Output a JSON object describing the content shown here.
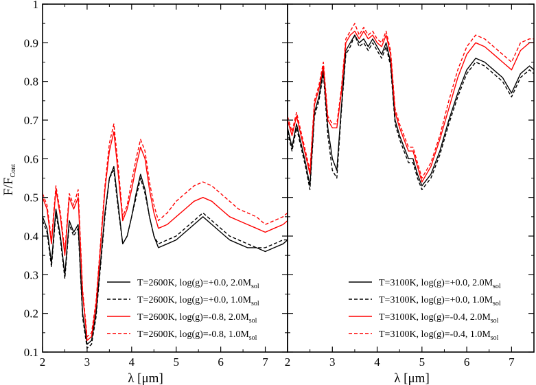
{
  "chart_data": [
    {
      "type": "line",
      "xlabel": "λ [μm]",
      "ylabel": "F/F",
      "ylabel_sub": "Cont",
      "xlim": [
        2,
        7.5
      ],
      "ylim": [
        0.1,
        1.0
      ],
      "x_ticks": [
        "2",
        "3",
        "4",
        "5",
        "6",
        "7"
      ],
      "y_ticks": [
        "0.1",
        "0.2",
        "0.3",
        "0.4",
        "0.5",
        "0.6",
        "0.7",
        "0.8",
        "0.9",
        "1"
      ],
      "legend_position": "bottom-right",
      "series": [
        {
          "name": "T=2600K, log(g)=+0.0, 2.0M",
          "name_sub": "sol",
          "color": "#000000",
          "dash": "solid",
          "x": [
            2.0,
            2.1,
            2.2,
            2.3,
            2.4,
            2.5,
            2.6,
            2.7,
            2.8,
            2.9,
            3.0,
            3.1,
            3.2,
            3.3,
            3.4,
            3.5,
            3.6,
            3.7,
            3.8,
            3.9,
            4.0,
            4.1,
            4.2,
            4.3,
            4.4,
            4.5,
            4.6,
            4.8,
            5.0,
            5.2,
            5.4,
            5.6,
            5.8,
            6.0,
            6.2,
            6.4,
            6.6,
            6.8,
            7.0,
            7.2,
            7.4,
            7.5
          ],
          "y": [
            0.45,
            0.42,
            0.33,
            0.47,
            0.4,
            0.3,
            0.44,
            0.41,
            0.43,
            0.2,
            0.12,
            0.13,
            0.2,
            0.33,
            0.46,
            0.55,
            0.58,
            0.48,
            0.38,
            0.4,
            0.45,
            0.51,
            0.56,
            0.52,
            0.45,
            0.4,
            0.37,
            0.38,
            0.39,
            0.41,
            0.43,
            0.45,
            0.43,
            0.41,
            0.39,
            0.38,
            0.37,
            0.37,
            0.36,
            0.37,
            0.38,
            0.39
          ]
        },
        {
          "name": "T=2600K, log(g)=+0.0, 1.0M",
          "name_sub": "sol",
          "color": "#000000",
          "dash": "dashed",
          "x": [
            2.0,
            2.1,
            2.2,
            2.3,
            2.4,
            2.5,
            2.6,
            2.7,
            2.8,
            2.9,
            3.0,
            3.1,
            3.2,
            3.3,
            3.4,
            3.5,
            3.6,
            3.7,
            3.8,
            3.9,
            4.0,
            4.1,
            4.2,
            4.3,
            4.4,
            4.5,
            4.6,
            4.8,
            5.0,
            5.2,
            5.4,
            5.6,
            5.8,
            6.0,
            6.2,
            6.4,
            6.6,
            6.8,
            7.0,
            7.2,
            7.4,
            7.5
          ],
          "y": [
            0.44,
            0.41,
            0.32,
            0.46,
            0.39,
            0.29,
            0.43,
            0.4,
            0.42,
            0.19,
            0.11,
            0.12,
            0.19,
            0.32,
            0.45,
            0.55,
            0.57,
            0.47,
            0.38,
            0.4,
            0.45,
            0.5,
            0.55,
            0.51,
            0.45,
            0.4,
            0.38,
            0.39,
            0.4,
            0.42,
            0.44,
            0.46,
            0.44,
            0.42,
            0.4,
            0.39,
            0.38,
            0.37,
            0.37,
            0.38,
            0.39,
            0.39
          ]
        },
        {
          "name": "T=2600K, log(g)=-0.8, 2.0M",
          "name_sub": "sol",
          "color": "#ff0000",
          "dash": "solid",
          "x": [
            2.0,
            2.1,
            2.2,
            2.3,
            2.4,
            2.5,
            2.6,
            2.7,
            2.8,
            2.9,
            3.0,
            3.1,
            3.2,
            3.3,
            3.4,
            3.5,
            3.6,
            3.7,
            3.8,
            3.9,
            4.0,
            4.1,
            4.2,
            4.3,
            4.4,
            4.5,
            4.6,
            4.8,
            5.0,
            5.2,
            5.4,
            5.6,
            5.8,
            6.0,
            6.2,
            6.4,
            6.6,
            6.8,
            7.0,
            7.2,
            7.4,
            7.5
          ],
          "y": [
            0.5,
            0.47,
            0.38,
            0.52,
            0.45,
            0.35,
            0.5,
            0.47,
            0.5,
            0.25,
            0.13,
            0.14,
            0.22,
            0.37,
            0.52,
            0.62,
            0.67,
            0.56,
            0.44,
            0.47,
            0.52,
            0.58,
            0.63,
            0.6,
            0.52,
            0.46,
            0.42,
            0.43,
            0.45,
            0.47,
            0.49,
            0.5,
            0.49,
            0.47,
            0.45,
            0.44,
            0.43,
            0.42,
            0.41,
            0.42,
            0.43,
            0.44
          ]
        },
        {
          "name": "T=2600K, log(g)=-0.8, 1.0M",
          "name_sub": "sol",
          "color": "#ff0000",
          "dash": "dashed",
          "x": [
            2.0,
            2.1,
            2.2,
            2.3,
            2.4,
            2.5,
            2.6,
            2.7,
            2.8,
            2.9,
            3.0,
            3.1,
            3.2,
            3.3,
            3.4,
            3.5,
            3.6,
            3.7,
            3.8,
            3.9,
            4.0,
            4.1,
            4.2,
            4.3,
            4.4,
            4.5,
            4.6,
            4.8,
            5.0,
            5.2,
            5.4,
            5.6,
            5.8,
            6.0,
            6.2,
            6.4,
            6.6,
            6.8,
            7.0,
            7.2,
            7.4,
            7.5
          ],
          "y": [
            0.51,
            0.48,
            0.39,
            0.53,
            0.46,
            0.36,
            0.51,
            0.48,
            0.52,
            0.26,
            0.14,
            0.15,
            0.23,
            0.38,
            0.53,
            0.64,
            0.69,
            0.58,
            0.45,
            0.48,
            0.54,
            0.6,
            0.65,
            0.62,
            0.54,
            0.48,
            0.44,
            0.46,
            0.49,
            0.51,
            0.53,
            0.54,
            0.53,
            0.51,
            0.49,
            0.47,
            0.46,
            0.45,
            0.43,
            0.44,
            0.45,
            0.46
          ]
        }
      ]
    },
    {
      "type": "line",
      "xlabel": "λ [μm]",
      "xlim": [
        2,
        7.5
      ],
      "ylim": [
        0.1,
        1.0
      ],
      "x_ticks": [
        "2",
        "3",
        "4",
        "5",
        "6",
        "7"
      ],
      "legend_position": "bottom-right",
      "series": [
        {
          "name": "T=3100K, log(g)=+0.0, 2.0M",
          "name_sub": "sol",
          "color": "#000000",
          "dash": "solid",
          "x": [
            2.0,
            2.1,
            2.2,
            2.3,
            2.4,
            2.5,
            2.6,
            2.7,
            2.8,
            2.9,
            3.0,
            3.1,
            3.2,
            3.3,
            3.4,
            3.5,
            3.6,
            3.7,
            3.8,
            3.9,
            4.0,
            4.1,
            4.2,
            4.3,
            4.4,
            4.5,
            4.6,
            4.7,
            4.8,
            4.9,
            5.0,
            5.2,
            5.4,
            5.6,
            5.8,
            6.0,
            6.2,
            6.4,
            6.6,
            6.8,
            7.0,
            7.2,
            7.4,
            7.5
          ],
          "y": [
            0.68,
            0.63,
            0.69,
            0.64,
            0.59,
            0.53,
            0.72,
            0.76,
            0.83,
            0.68,
            0.6,
            0.57,
            0.73,
            0.88,
            0.9,
            0.92,
            0.9,
            0.91,
            0.89,
            0.91,
            0.89,
            0.87,
            0.9,
            0.85,
            0.7,
            0.66,
            0.63,
            0.6,
            0.6,
            0.56,
            0.53,
            0.56,
            0.62,
            0.7,
            0.77,
            0.83,
            0.86,
            0.85,
            0.83,
            0.81,
            0.77,
            0.82,
            0.84,
            0.83
          ]
        },
        {
          "name": "T=3100K, log(g)=+0.0, 1.0M",
          "name_sub": "sol",
          "color": "#000000",
          "dash": "dashed",
          "x": [
            2.0,
            2.1,
            2.2,
            2.3,
            2.4,
            2.5,
            2.6,
            2.7,
            2.8,
            2.9,
            3.0,
            3.1,
            3.2,
            3.3,
            3.4,
            3.5,
            3.6,
            3.7,
            3.8,
            3.9,
            4.0,
            4.1,
            4.2,
            4.3,
            4.4,
            4.5,
            4.6,
            4.7,
            4.8,
            4.9,
            5.0,
            5.2,
            5.4,
            5.6,
            5.8,
            6.0,
            6.2,
            6.4,
            6.6,
            6.8,
            7.0,
            7.2,
            7.4,
            7.5
          ],
          "y": [
            0.67,
            0.62,
            0.68,
            0.63,
            0.58,
            0.52,
            0.71,
            0.75,
            0.82,
            0.66,
            0.57,
            0.55,
            0.72,
            0.87,
            0.89,
            0.92,
            0.89,
            0.9,
            0.88,
            0.9,
            0.88,
            0.86,
            0.89,
            0.84,
            0.69,
            0.65,
            0.62,
            0.59,
            0.59,
            0.55,
            0.52,
            0.55,
            0.61,
            0.69,
            0.76,
            0.82,
            0.85,
            0.84,
            0.82,
            0.8,
            0.76,
            0.81,
            0.83,
            0.82
          ]
        },
        {
          "name": "T=3100K, log(g)=-0.4, 2.0M",
          "name_sub": "sol",
          "color": "#ff0000",
          "dash": "solid",
          "x": [
            2.0,
            2.1,
            2.2,
            2.3,
            2.4,
            2.5,
            2.6,
            2.7,
            2.8,
            2.9,
            3.0,
            3.1,
            3.2,
            3.3,
            3.4,
            3.5,
            3.6,
            3.7,
            3.8,
            3.9,
            4.0,
            4.1,
            4.2,
            4.3,
            4.4,
            4.5,
            4.6,
            4.7,
            4.8,
            4.9,
            5.0,
            5.2,
            5.4,
            5.6,
            5.8,
            6.0,
            6.2,
            6.4,
            6.6,
            6.8,
            7.0,
            7.2,
            7.4,
            7.5
          ],
          "y": [
            0.7,
            0.66,
            0.71,
            0.66,
            0.61,
            0.56,
            0.74,
            0.78,
            0.84,
            0.7,
            0.68,
            0.68,
            0.77,
            0.9,
            0.92,
            0.93,
            0.91,
            0.93,
            0.91,
            0.92,
            0.9,
            0.89,
            0.92,
            0.87,
            0.72,
            0.68,
            0.65,
            0.62,
            0.62,
            0.58,
            0.54,
            0.58,
            0.65,
            0.73,
            0.81,
            0.87,
            0.9,
            0.89,
            0.87,
            0.85,
            0.83,
            0.88,
            0.9,
            0.9
          ]
        },
        {
          "name": "T=3100K, log(g)=-0.4, 1.0M",
          "name_sub": "sol",
          "color": "#ff0000",
          "dash": "dashed",
          "x": [
            2.0,
            2.1,
            2.2,
            2.3,
            2.4,
            2.5,
            2.6,
            2.7,
            2.8,
            2.9,
            3.0,
            3.1,
            3.2,
            3.3,
            3.4,
            3.5,
            3.6,
            3.7,
            3.8,
            3.9,
            4.0,
            4.1,
            4.2,
            4.3,
            4.4,
            4.5,
            4.6,
            4.7,
            4.8,
            4.9,
            5.0,
            5.2,
            5.4,
            5.6,
            5.8,
            6.0,
            6.2,
            6.4,
            6.6,
            6.8,
            7.0,
            7.2,
            7.4,
            7.5
          ],
          "y": [
            0.71,
            0.67,
            0.72,
            0.67,
            0.62,
            0.57,
            0.75,
            0.79,
            0.85,
            0.71,
            0.69,
            0.69,
            0.78,
            0.91,
            0.93,
            0.95,
            0.92,
            0.94,
            0.92,
            0.93,
            0.91,
            0.9,
            0.93,
            0.88,
            0.73,
            0.69,
            0.66,
            0.63,
            0.63,
            0.59,
            0.55,
            0.59,
            0.66,
            0.75,
            0.83,
            0.89,
            0.92,
            0.91,
            0.89,
            0.87,
            0.85,
            0.9,
            0.91,
            0.91
          ]
        }
      ]
    }
  ]
}
